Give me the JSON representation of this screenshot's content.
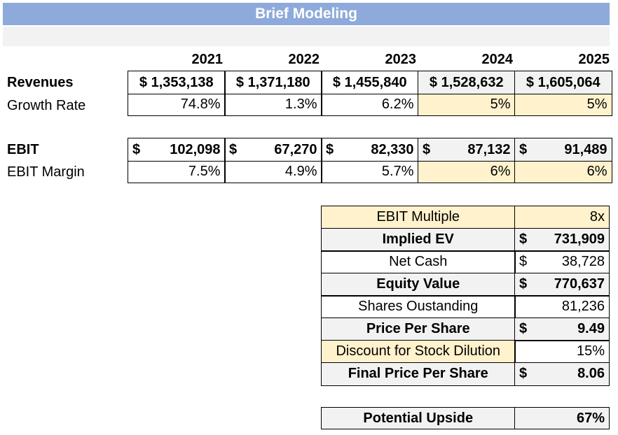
{
  "title": "Brief Modeling",
  "years": [
    "2021",
    "2022",
    "2023",
    "2024",
    "2025"
  ],
  "revenues": {
    "label": "Revenues",
    "values": [
      "$ 1,353,138",
      "$ 1,371,180",
      "$ 1,455,840",
      "$ 1,528,632",
      "$ 1,605,064"
    ]
  },
  "growth_rate": {
    "label": "Growth Rate",
    "values": [
      "74.8%",
      "1.3%",
      "6.2%",
      "5%",
      "5%"
    ]
  },
  "ebit": {
    "label": "EBIT",
    "currency": "$",
    "values": [
      "102,098",
      "67,270",
      "82,330",
      "87,132",
      "91,489"
    ]
  },
  "ebit_margin": {
    "label": "EBIT Margin",
    "values": [
      "7.5%",
      "4.9%",
      "5.7%",
      "6%",
      "6%"
    ]
  },
  "valuation": {
    "rows": [
      {
        "label": "EBIT Multiple",
        "currency": "",
        "value": "8x"
      },
      {
        "label": "Implied EV",
        "currency": "$",
        "value": "731,909"
      },
      {
        "label": "Net Cash",
        "currency": "$",
        "value": "38,728"
      },
      {
        "label": "Equity Value",
        "currency": "$",
        "value": "770,637"
      },
      {
        "label": "Shares Oustanding",
        "currency": "",
        "value": "81,236"
      },
      {
        "label": "Price Per Share",
        "currency": "$",
        "value": "9.49"
      },
      {
        "label": "Discount for Stock Dilution",
        "currency": "",
        "value": "15%"
      },
      {
        "label": "Final Price Per Share",
        "currency": "$",
        "value": "8.06"
      }
    ]
  },
  "upside": {
    "label": "Potential Upside",
    "value": "67%"
  },
  "colors": {
    "title_bg": "#8eaadb",
    "input_yellow": "#fff2cc",
    "gray": "#f2f2f2"
  }
}
